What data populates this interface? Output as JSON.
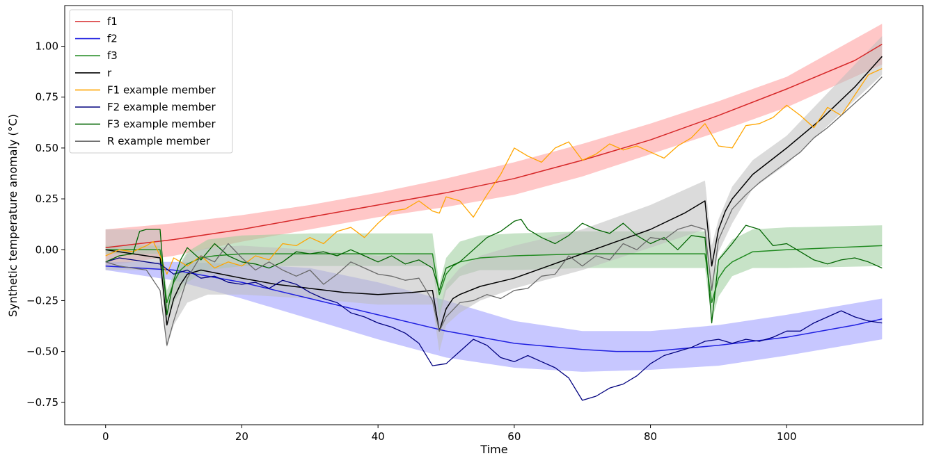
{
  "chart_data": {
    "type": "line",
    "xlabel": "Time",
    "ylabel": "Synthetic temperature anomaly (°C)",
    "xlim": [
      -6,
      120
    ],
    "ylim": [
      -0.86,
      1.2
    ],
    "xticks": [
      0,
      20,
      40,
      60,
      80,
      100
    ],
    "xtick_labels": [
      "0",
      "20",
      "40",
      "60",
      "80",
      "100"
    ],
    "yticks": [
      -0.75,
      -0.5,
      -0.25,
      0.0,
      0.25,
      0.5,
      0.75,
      1.0
    ],
    "ytick_labels": [
      "−0.75",
      "−0.50",
      "−0.25",
      "0.00",
      "0.25",
      "0.50",
      "0.75",
      "1.00"
    ],
    "grid": false,
    "legend_position": "top-left",
    "bands": [
      {
        "series": "f1",
        "color": "#ff9999",
        "x": [
          0,
          10,
          20,
          30,
          40,
          50,
          60,
          70,
          80,
          90,
          100,
          114
        ],
        "upper": [
          0.1,
          0.13,
          0.17,
          0.22,
          0.28,
          0.35,
          0.43,
          0.52,
          0.62,
          0.73,
          0.85,
          1.11
        ],
        "lower": [
          -0.08,
          -0.03,
          0.04,
          0.1,
          0.16,
          0.21,
          0.27,
          0.36,
          0.47,
          0.58,
          0.7,
          0.91
        ]
      },
      {
        "series": "f2",
        "color": "#9999ff",
        "x": [
          0,
          10,
          20,
          30,
          40,
          50,
          60,
          70,
          80,
          90,
          100,
          114
        ],
        "upper": [
          -0.06,
          -0.06,
          -0.07,
          -0.09,
          -0.16,
          -0.25,
          -0.35,
          -0.4,
          -0.4,
          -0.37,
          -0.32,
          -0.24
        ],
        "lower": [
          -0.1,
          -0.15,
          -0.24,
          -0.34,
          -0.44,
          -0.53,
          -0.58,
          -0.6,
          -0.59,
          -0.57,
          -0.52,
          -0.44
        ]
      },
      {
        "series": "f3",
        "color": "#99cc99",
        "x": [
          0,
          8,
          9,
          10,
          12,
          15,
          20,
          30,
          40,
          48,
          49,
          50,
          52,
          55,
          60,
          70,
          80,
          88,
          89,
          90,
          92,
          95,
          100,
          114
        ],
        "upper": [
          0.02,
          0.02,
          -0.2,
          -0.12,
          -0.01,
          0.05,
          0.07,
          0.08,
          0.08,
          0.08,
          -0.17,
          -0.04,
          0.04,
          0.07,
          0.08,
          0.09,
          0.09,
          0.09,
          -0.15,
          -0.04,
          0.05,
          0.1,
          0.11,
          0.12
        ],
        "lower": [
          -0.02,
          -0.02,
          -0.34,
          -0.26,
          -0.16,
          -0.1,
          -0.08,
          -0.08,
          -0.08,
          -0.08,
          -0.33,
          -0.2,
          -0.13,
          -0.1,
          -0.1,
          -0.09,
          -0.09,
          -0.09,
          -0.35,
          -0.23,
          -0.13,
          -0.09,
          -0.09,
          -0.08
        ]
      },
      {
        "series": "r",
        "color": "#bdbdbd",
        "x": [
          0,
          8,
          9,
          10,
          12,
          15,
          20,
          30,
          40,
          48,
          49,
          50,
          52,
          55,
          60,
          70,
          80,
          88,
          89,
          90,
          92,
          95,
          100,
          114
        ],
        "upper": [
          0.1,
          0.1,
          -0.24,
          -0.13,
          -0.02,
          0.01,
          0.02,
          0.0,
          -0.03,
          -0.02,
          -0.3,
          -0.17,
          -0.09,
          -0.03,
          0.02,
          0.1,
          0.22,
          0.34,
          0.02,
          0.15,
          0.31,
          0.44,
          0.56,
          1.05
        ],
        "lower": [
          -0.1,
          -0.1,
          -0.48,
          -0.37,
          -0.26,
          -0.22,
          -0.22,
          -0.24,
          -0.27,
          -0.27,
          -0.5,
          -0.37,
          -0.31,
          -0.25,
          -0.19,
          -0.1,
          0.01,
          0.1,
          -0.18,
          -0.01,
          0.13,
          0.3,
          0.42,
          0.86
        ]
      }
    ],
    "series": [
      {
        "name": "f1",
        "color": "#d62728",
        "width": 1.5,
        "x": [
          0,
          10,
          20,
          30,
          40,
          50,
          60,
          70,
          80,
          90,
          100,
          110,
          114
        ],
        "y": [
          0.01,
          0.05,
          0.1,
          0.16,
          0.22,
          0.28,
          0.35,
          0.44,
          0.54,
          0.66,
          0.79,
          0.93,
          1.01
        ]
      },
      {
        "name": "f2",
        "color": "#1f1fe0",
        "width": 1.5,
        "x": [
          0,
          10,
          20,
          30,
          40,
          50,
          60,
          70,
          75,
          80,
          90,
          100,
          110,
          114
        ],
        "y": [
          -0.08,
          -0.1,
          -0.16,
          -0.24,
          -0.32,
          -0.4,
          -0.46,
          -0.49,
          -0.5,
          -0.5,
          -0.47,
          -0.43,
          -0.37,
          -0.34
        ]
      },
      {
        "name": "f3",
        "color": "#228b22",
        "width": 1.5,
        "x": [
          0,
          8,
          9,
          10,
          11,
          12,
          14,
          16,
          20,
          30,
          40,
          48,
          49,
          50,
          51,
          52,
          55,
          60,
          70,
          80,
          88,
          89,
          90,
          91,
          92,
          95,
          100,
          114
        ],
        "y": [
          0,
          0,
          -0.26,
          -0.16,
          -0.1,
          -0.07,
          -0.04,
          -0.03,
          -0.02,
          -0.02,
          -0.02,
          -0.02,
          -0.22,
          -0.12,
          -0.08,
          -0.06,
          -0.04,
          -0.03,
          -0.02,
          -0.02,
          -0.02,
          -0.26,
          -0.14,
          -0.09,
          -0.06,
          -0.01,
          0.0,
          0.02
        ]
      },
      {
        "name": "r",
        "color": "#000000",
        "width": 1.5,
        "x": [
          0,
          8,
          9,
          10,
          11,
          12,
          14,
          17,
          20,
          25,
          30,
          35,
          40,
          45,
          48,
          49,
          50,
          51,
          52,
          55,
          60,
          65,
          70,
          75,
          80,
          85,
          88,
          89,
          90,
          91,
          92,
          95,
          100,
          105,
          110,
          114
        ],
        "y": [
          0,
          -0.04,
          -0.37,
          -0.24,
          -0.17,
          -0.12,
          -0.1,
          -0.12,
          -0.14,
          -0.17,
          -0.19,
          -0.21,
          -0.22,
          -0.21,
          -0.2,
          -0.4,
          -0.29,
          -0.24,
          -0.22,
          -0.18,
          -0.14,
          -0.08,
          -0.02,
          0.04,
          0.1,
          0.18,
          0.24,
          -0.08,
          0.1,
          0.19,
          0.25,
          0.37,
          0.5,
          0.64,
          0.8,
          0.95
        ]
      },
      {
        "name": "F1 example member",
        "color": "#ffa500",
        "width": 1.3,
        "x": [
          0,
          2,
          4,
          6,
          7,
          8,
          9,
          10,
          12,
          14,
          16,
          18,
          20,
          22,
          24,
          26,
          28,
          30,
          32,
          34,
          36,
          38,
          40,
          42,
          44,
          46,
          48,
          49,
          50,
          52,
          54,
          56,
          58,
          60,
          62,
          64,
          66,
          68,
          70,
          72,
          74,
          76,
          78,
          80,
          82,
          84,
          86,
          88,
          90,
          92,
          94,
          96,
          98,
          100,
          102,
          104,
          106,
          108,
          110,
          112,
          114
        ],
        "y": [
          -0.03,
          0.0,
          -0.01,
          0.02,
          0.04,
          -0.03,
          -0.12,
          -0.04,
          -0.08,
          -0.03,
          -0.09,
          -0.06,
          -0.08,
          -0.03,
          -0.05,
          0.03,
          0.02,
          0.06,
          0.03,
          0.09,
          0.11,
          0.06,
          0.13,
          0.19,
          0.2,
          0.24,
          0.19,
          0.18,
          0.26,
          0.24,
          0.16,
          0.27,
          0.37,
          0.5,
          0.46,
          0.43,
          0.5,
          0.53,
          0.44,
          0.47,
          0.52,
          0.49,
          0.51,
          0.48,
          0.45,
          0.51,
          0.55,
          0.62,
          0.51,
          0.5,
          0.61,
          0.62,
          0.65,
          0.71,
          0.66,
          0.6,
          0.7,
          0.66,
          0.76,
          0.86,
          0.89
        ]
      },
      {
        "name": "F2 example member",
        "color": "#00007f",
        "width": 1.3,
        "x": [
          0,
          2,
          4,
          6,
          8,
          10,
          12,
          14,
          16,
          18,
          20,
          22,
          24,
          26,
          28,
          30,
          32,
          34,
          36,
          38,
          40,
          42,
          44,
          46,
          48,
          50,
          52,
          54,
          56,
          58,
          60,
          62,
          64,
          66,
          68,
          70,
          72,
          74,
          76,
          78,
          80,
          82,
          84,
          86,
          88,
          90,
          92,
          94,
          96,
          98,
          100,
          102,
          104,
          106,
          108,
          110,
          112,
          114
        ],
        "y": [
          -0.06,
          -0.04,
          -0.05,
          -0.06,
          -0.07,
          -0.12,
          -0.1,
          -0.14,
          -0.13,
          -0.16,
          -0.17,
          -0.16,
          -0.19,
          -0.15,
          -0.17,
          -0.21,
          -0.24,
          -0.26,
          -0.31,
          -0.33,
          -0.36,
          -0.38,
          -0.41,
          -0.46,
          -0.57,
          -0.56,
          -0.5,
          -0.44,
          -0.47,
          -0.53,
          -0.55,
          -0.52,
          -0.55,
          -0.58,
          -0.63,
          -0.74,
          -0.72,
          -0.68,
          -0.66,
          -0.62,
          -0.56,
          -0.52,
          -0.5,
          -0.48,
          -0.45,
          -0.44,
          -0.46,
          -0.44,
          -0.45,
          -0.43,
          -0.4,
          -0.4,
          -0.36,
          -0.33,
          -0.3,
          -0.33,
          -0.35,
          -0.36
        ]
      },
      {
        "name": "F3 example member",
        "color": "#006400",
        "width": 1.3,
        "x": [
          0,
          2,
          4,
          5,
          6,
          7,
          8,
          9,
          10,
          11,
          12,
          14,
          16,
          18,
          20,
          22,
          24,
          26,
          28,
          30,
          32,
          34,
          36,
          38,
          40,
          42,
          44,
          46,
          48,
          49,
          50,
          52,
          54,
          56,
          58,
          60,
          61,
          62,
          64,
          66,
          68,
          70,
          72,
          74,
          76,
          78,
          80,
          82,
          84,
          86,
          88,
          89,
          90,
          92,
          94,
          96,
          98,
          100,
          102,
          104,
          106,
          108,
          110,
          112,
          114
        ],
        "y": [
          -0.06,
          -0.03,
          -0.02,
          0.09,
          0.1,
          0.1,
          0.1,
          -0.32,
          -0.15,
          -0.05,
          0.01,
          -0.05,
          0.03,
          -0.03,
          -0.06,
          -0.07,
          -0.09,
          -0.06,
          -0.01,
          -0.02,
          -0.01,
          -0.03,
          0.0,
          -0.03,
          -0.06,
          -0.03,
          -0.07,
          -0.05,
          -0.09,
          -0.2,
          -0.09,
          -0.06,
          0.0,
          0.06,
          0.09,
          0.14,
          0.15,
          0.1,
          0.06,
          0.03,
          0.07,
          0.13,
          0.1,
          0.08,
          0.13,
          0.07,
          0.03,
          0.06,
          0.0,
          0.07,
          0.06,
          -0.36,
          -0.05,
          0.03,
          0.12,
          0.1,
          0.02,
          0.03,
          -0.01,
          -0.05,
          -0.07,
          -0.05,
          -0.04,
          -0.06,
          -0.09
        ]
      },
      {
        "name": "R example member",
        "color": "#696969",
        "width": 1.3,
        "x": [
          0,
          2,
          4,
          6,
          8,
          9,
          10,
          12,
          14,
          16,
          18,
          20,
          22,
          24,
          26,
          28,
          30,
          32,
          34,
          36,
          38,
          40,
          42,
          44,
          46,
          48,
          49,
          50,
          52,
          54,
          56,
          58,
          60,
          62,
          64,
          66,
          68,
          70,
          72,
          74,
          76,
          78,
          80,
          82,
          84,
          86,
          88,
          89,
          90,
          92,
          94,
          96,
          98,
          100,
          102,
          104,
          106,
          108,
          110,
          112,
          114
        ],
        "y": [
          -0.06,
          -0.08,
          -0.09,
          -0.1,
          -0.2,
          -0.47,
          -0.35,
          -0.14,
          -0.03,
          -0.06,
          0.03,
          -0.04,
          -0.1,
          -0.06,
          -0.1,
          -0.13,
          -0.1,
          -0.17,
          -0.12,
          -0.06,
          -0.09,
          -0.12,
          -0.13,
          -0.15,
          -0.14,
          -0.25,
          -0.4,
          -0.33,
          -0.26,
          -0.25,
          -0.22,
          -0.24,
          -0.2,
          -0.19,
          -0.13,
          -0.12,
          -0.03,
          -0.08,
          -0.03,
          -0.05,
          0.03,
          0.0,
          0.06,
          0.05,
          0.1,
          0.12,
          0.1,
          -0.2,
          0.05,
          0.2,
          0.27,
          0.33,
          0.38,
          0.43,
          0.48,
          0.55,
          0.6,
          0.66,
          0.72,
          0.78,
          0.85
        ]
      }
    ]
  }
}
